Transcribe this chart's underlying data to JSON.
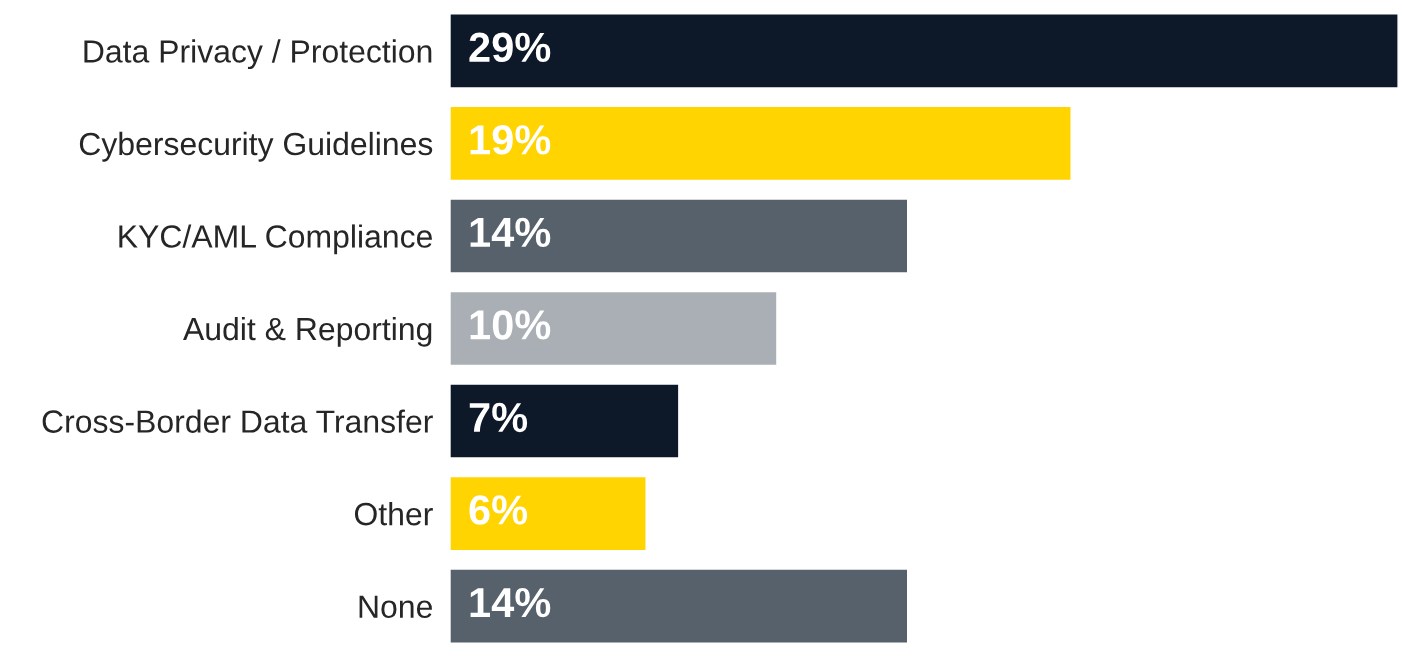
{
  "chart_data": {
    "type": "bar",
    "orientation": "horizontal",
    "categories": [
      "Data Privacy / Protection",
      "Cybersecurity Guidelines",
      "KYC/AML Compliance",
      "Audit & Reporting",
      "Cross-Border Data Transfer",
      "Other",
      "None"
    ],
    "values": [
      29,
      19,
      14,
      10,
      7,
      6,
      14
    ],
    "colors": [
      "#0d1829",
      "#ffd400",
      "#56616b",
      "#a9afb5",
      "#0d1829",
      "#ffd400",
      "#56616b"
    ],
    "value_labels": [
      "29%",
      "19%",
      "14%",
      "10%",
      "7%",
      "6%",
      "14%"
    ],
    "grid": false,
    "legend": false,
    "tick_labels": "y"
  }
}
